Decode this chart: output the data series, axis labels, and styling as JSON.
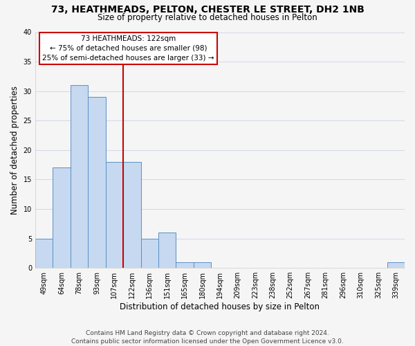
{
  "title": "73, HEATHMEADS, PELTON, CHESTER LE STREET, DH2 1NB",
  "subtitle": "Size of property relative to detached houses in Pelton",
  "xlabel": "Distribution of detached houses by size in Pelton",
  "ylabel": "Number of detached properties",
  "bar_labels": [
    "49sqm",
    "64sqm",
    "78sqm",
    "93sqm",
    "107sqm",
    "122sqm",
    "136sqm",
    "151sqm",
    "165sqm",
    "180sqm",
    "194sqm",
    "209sqm",
    "223sqm",
    "238sqm",
    "252sqm",
    "267sqm",
    "281sqm",
    "296sqm",
    "310sqm",
    "325sqm",
    "339sqm"
  ],
  "bar_values": [
    5,
    17,
    31,
    29,
    18,
    18,
    5,
    6,
    1,
    1,
    0,
    0,
    0,
    0,
    0,
    0,
    0,
    0,
    0,
    0,
    1
  ],
  "bar_color": "#c6d9f0",
  "bar_edge_color": "#5a8fc4",
  "vline_index": 5,
  "vline_color": "#cc0000",
  "annotation_line1": "73 HEATHMEADS: 122sqm",
  "annotation_line2": "← 75% of detached houses are smaller (98)",
  "annotation_line3": "25% of semi-detached houses are larger (33) →",
  "annotation_box_edgecolor": "#cc0000",
  "annotation_box_facecolor": "#ffffff",
  "ylim": [
    0,
    40
  ],
  "yticks": [
    0,
    5,
    10,
    15,
    20,
    25,
    30,
    35,
    40
  ],
  "footer_line1": "Contains HM Land Registry data © Crown copyright and database right 2024.",
  "footer_line2": "Contains public sector information licensed under the Open Government Licence v3.0.",
  "background_color": "#f5f5f5",
  "plot_bg_color": "#f5f5f5",
  "grid_color": "#d0d8e8",
  "title_fontsize": 10,
  "subtitle_fontsize": 8.5,
  "axis_label_fontsize": 8.5,
  "tick_fontsize": 7,
  "annotation_fontsize": 7.5,
  "footer_fontsize": 6.5
}
